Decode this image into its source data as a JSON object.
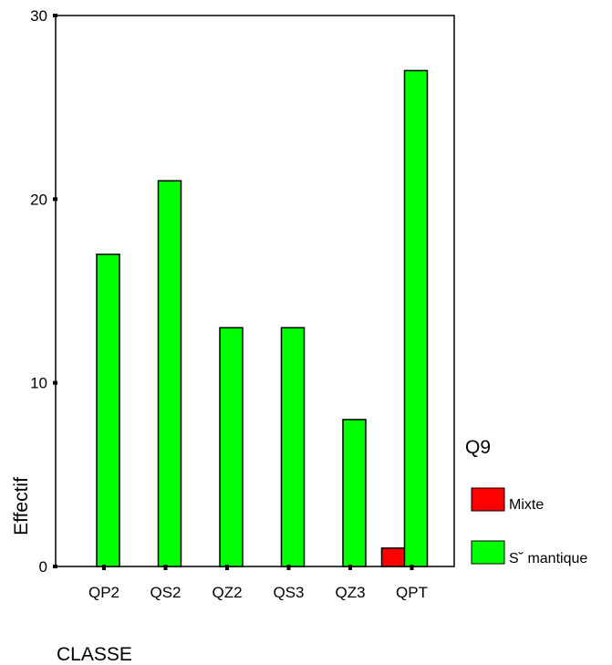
{
  "chart_data": {
    "type": "bar",
    "xlabel": "CLASSE",
    "ylabel": "Effectif",
    "categories": [
      "QP2",
      "QS2",
      "QZ2",
      "QS3",
      "QZ3",
      "QPT"
    ],
    "ylim": [
      0,
      30
    ],
    "yticks": [
      0,
      10,
      20,
      30
    ],
    "legend_title": "Q9",
    "legend_position": "right",
    "grid": false,
    "series": [
      {
        "name": "Mixte",
        "color": "#ff0000",
        "values": [
          0,
          0,
          0,
          0,
          0,
          1
        ]
      },
      {
        "name": "S˘ mantique",
        "color": "#00ff00",
        "values": [
          17,
          21,
          13,
          13,
          8,
          27
        ]
      }
    ]
  }
}
